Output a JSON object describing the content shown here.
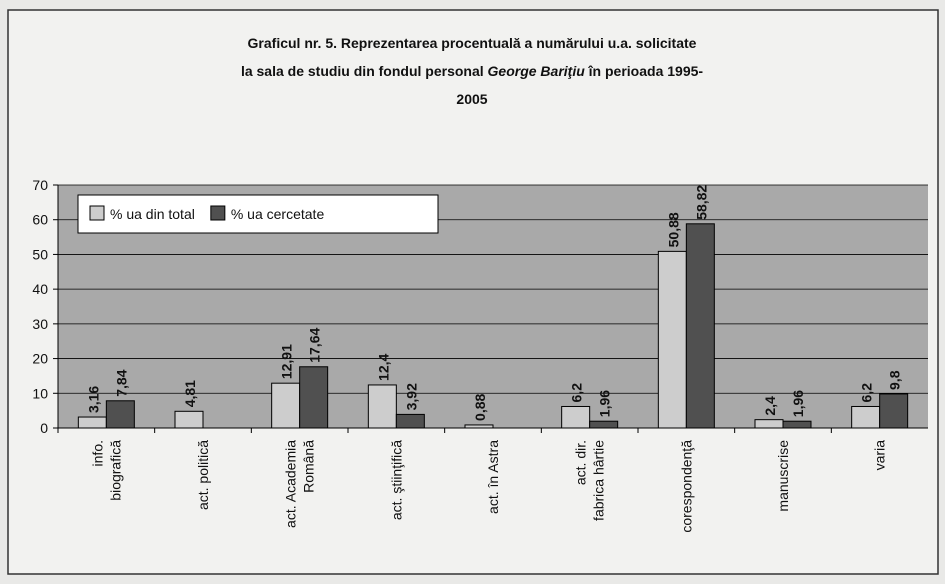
{
  "chart_data": {
    "type": "bar",
    "title": [
      "Graficul nr. 5. Reprezentarea procentuală a numărului u.a. solicitate",
      [
        "la sala de studiu din fondul personal ",
        "George Bariţiu",
        " în perioada 1995-"
      ],
      "2005"
    ],
    "categories": [
      "info.\nbiografică",
      "act. politică",
      "act. Academia\nRomână",
      "act. ştiinţifică",
      "act. în Astra",
      "act. dir.\nfabrica hârtie",
      "corespondenţă",
      "manuscrise",
      "varia"
    ],
    "series": [
      {
        "name": "% ua din total",
        "color": "#cdcdcd",
        "values": [
          3.16,
          4.81,
          12.91,
          12.4,
          0.88,
          6.2,
          50.88,
          2.4,
          6.2
        ],
        "value_labels": [
          "3,16",
          "4,81",
          "12,91",
          "12,4",
          "0,88",
          "6,2",
          "50,88",
          "2,4",
          "6,2"
        ]
      },
      {
        "name": "% ua cercetate",
        "color": "#505050",
        "values": [
          7.84,
          null,
          17.64,
          3.92,
          null,
          1.96,
          58.82,
          1.96,
          9.8
        ],
        "value_labels": [
          "7,84",
          null,
          "17,64",
          "3,92",
          null,
          "1,96",
          "58,82",
          "1,96",
          "9,8"
        ]
      }
    ],
    "ylim": [
      0,
      70
    ],
    "yticks": [
      0,
      10,
      20,
      30,
      40,
      50,
      60,
      70
    ],
    "grid": true,
    "legend": "top-left"
  }
}
